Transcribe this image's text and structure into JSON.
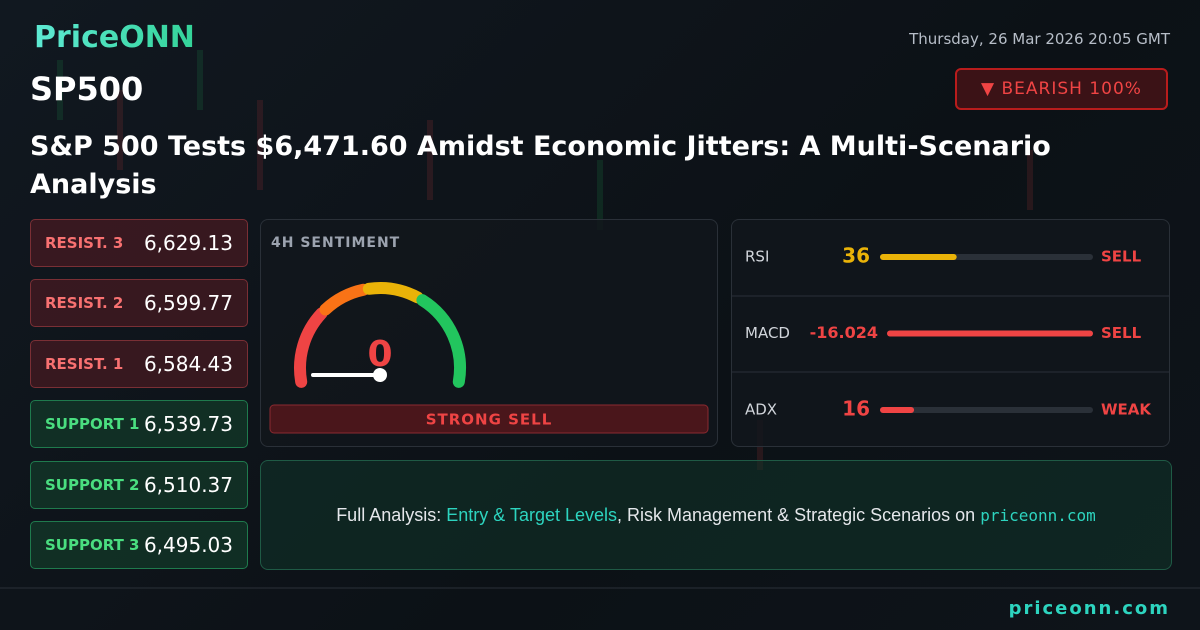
{
  "brand": "PriceONN",
  "datetime": "Thursday, 26 Mar 2026 20:05 GMT",
  "symbol": "SP500",
  "badge": "▼ BEARISH 100%",
  "headline": "S&P 500 Tests $6,471.60 Amidst Economic Jitters: A Multi-Scenario Analysis",
  "levels": [
    {
      "label": "RESIST. 3",
      "value": "6,629.13",
      "color": "#f87171"
    },
    {
      "label": "RESIST. 2",
      "value": "6,599.77",
      "color": "#f87171"
    },
    {
      "label": "RESIST. 1",
      "value": "6,584.43",
      "color": "#f87171"
    },
    {
      "label": "SUPPORT 1",
      "value": "6,539.73",
      "color": "#4ade80"
    },
    {
      "label": "SUPPORT 2",
      "value": "6,510.37",
      "color": "#4ade80"
    },
    {
      "label": "SUPPORT 3",
      "value": "6,495.03",
      "color": "#4ade80"
    }
  ],
  "sentiment": {
    "title": "4H SENTIMENT",
    "value": 0,
    "signal": "STRONG SELL",
    "color": "#ef4444"
  },
  "indicators": [
    {
      "name": "RSI",
      "value": 36,
      "status": "SELL",
      "color": "#eab308",
      "status_color": "#ef4444"
    },
    {
      "name": "MACD",
      "value": -16.024,
      "status": "SELL",
      "color": "#ef4444",
      "status_color": "#ef4444"
    },
    {
      "name": "ADX",
      "value": 16,
      "status": "WEAK",
      "color": "#ef4444",
      "status_color": "#ef4444"
    }
  ],
  "cta": {
    "prefix": "Full Analysis:",
    "highlight": "Entry & Target Levels",
    "middle": ", Risk Management & Strategic Scenarios on",
    "link": "priceonn.com"
  },
  "footer": "priceonn.com"
}
